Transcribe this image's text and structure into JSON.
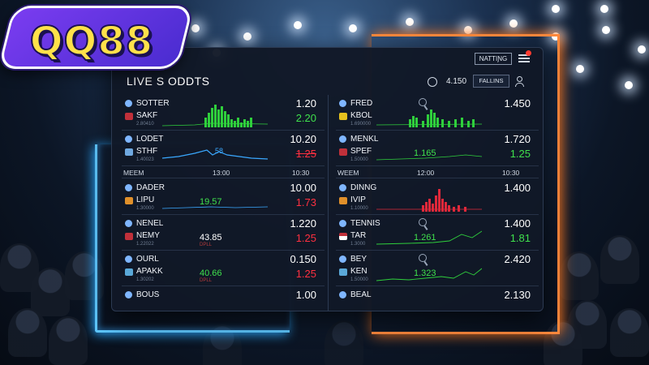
{
  "brand": {
    "logo_text": "QQ88"
  },
  "header": {
    "nav_button_label": "NATTIƝG",
    "title": "LIVE S ODDTS",
    "count": "4.150",
    "filter_button_label": "FALLINS"
  },
  "left_column": {
    "rows": [
      {
        "team1": "SOTTER",
        "team2": "SAKF",
        "sub": "2.80410",
        "odd1": "1.20",
        "odd2": "2.20",
        "odd2_color": "green",
        "spark": "bars-green"
      },
      {
        "team1": "LODET",
        "team2": "STHF",
        "sub": "1.40023",
        "odd1": "10.20",
        "odd2": "1.25",
        "odd2_color": "red",
        "spark": "line-blue",
        "mid_label": "58"
      }
    ],
    "time_row": {
      "label": "MEEM",
      "t1": "13:00",
      "t2": "10:30"
    },
    "rows2": [
      {
        "team1": "DADER",
        "team2": "LIPU",
        "sub": "1.30000",
        "odd1": "10.00",
        "mid": "19.57",
        "mid_color": "green",
        "odd2": "1.73",
        "odd2_color": "red",
        "spark": "line-blue"
      },
      {
        "team1": "NENEL",
        "team2": "NEMY",
        "sub": "1.22022",
        "odd1": "1.220",
        "mid": "43.85",
        "mid_color": "white",
        "mini": "DPLL",
        "odd2": "1.25",
        "odd2_color": "red",
        "spark": "none"
      },
      {
        "team1": "OURL",
        "team2": "APAKK",
        "sub": "1.30202",
        "odd1": "0.150",
        "mid": "40.66",
        "mid_color": "green",
        "mini": "DPLL",
        "odd2": "1.25",
        "odd2_color": "red",
        "spark": "none"
      }
    ],
    "cut_row": {
      "team1": "BOUS",
      "odd1": "1.00"
    }
  },
  "right_column": {
    "rows": [
      {
        "team1": "FRED",
        "team2": "KBOL",
        "sub": "1.690000",
        "odd1": "1.450",
        "spark": "bars-green"
      },
      {
        "team1": "MENKL",
        "team2": "SPEF",
        "sub": "1.50000",
        "odd1": "1.720",
        "mid": "1.165",
        "mid_color": "green",
        "odd2": "1.25",
        "odd2_color": "green",
        "spark": "line-green"
      }
    ],
    "time_row": {
      "label": "WEEM",
      "t1": "12:00",
      "t2": "10:30"
    },
    "rows2": [
      {
        "team1": "DINNG",
        "team2": "IVIP",
        "sub": "1.10000",
        "odd1": "1.400",
        "spark": "bars-red"
      },
      {
        "team1": "TENNIS",
        "team2": "TAR",
        "sub": "1.3000",
        "odd1": "1.400",
        "mid": "1.261",
        "mid_color": "green",
        "odd2": "1.81",
        "odd2_color": "green",
        "spark": "line-green"
      },
      {
        "team1": "BEY",
        "team2": "KEN",
        "sub": "1.50000",
        "odd1": "2.420",
        "mid": "1.323",
        "mid_color": "green",
        "spark": "line-green"
      }
    ],
    "cut_row": {
      "team1": "BEAL",
      "odd1": "2.130"
    }
  },
  "colors": {
    "accent_green": "#3fe04c",
    "accent_red": "#ff3040",
    "neon_blue": "#5fc8ff",
    "neon_orange": "#ff8a3d",
    "logo_purple": "#6a34e0",
    "logo_yellow": "#ffe14a"
  }
}
